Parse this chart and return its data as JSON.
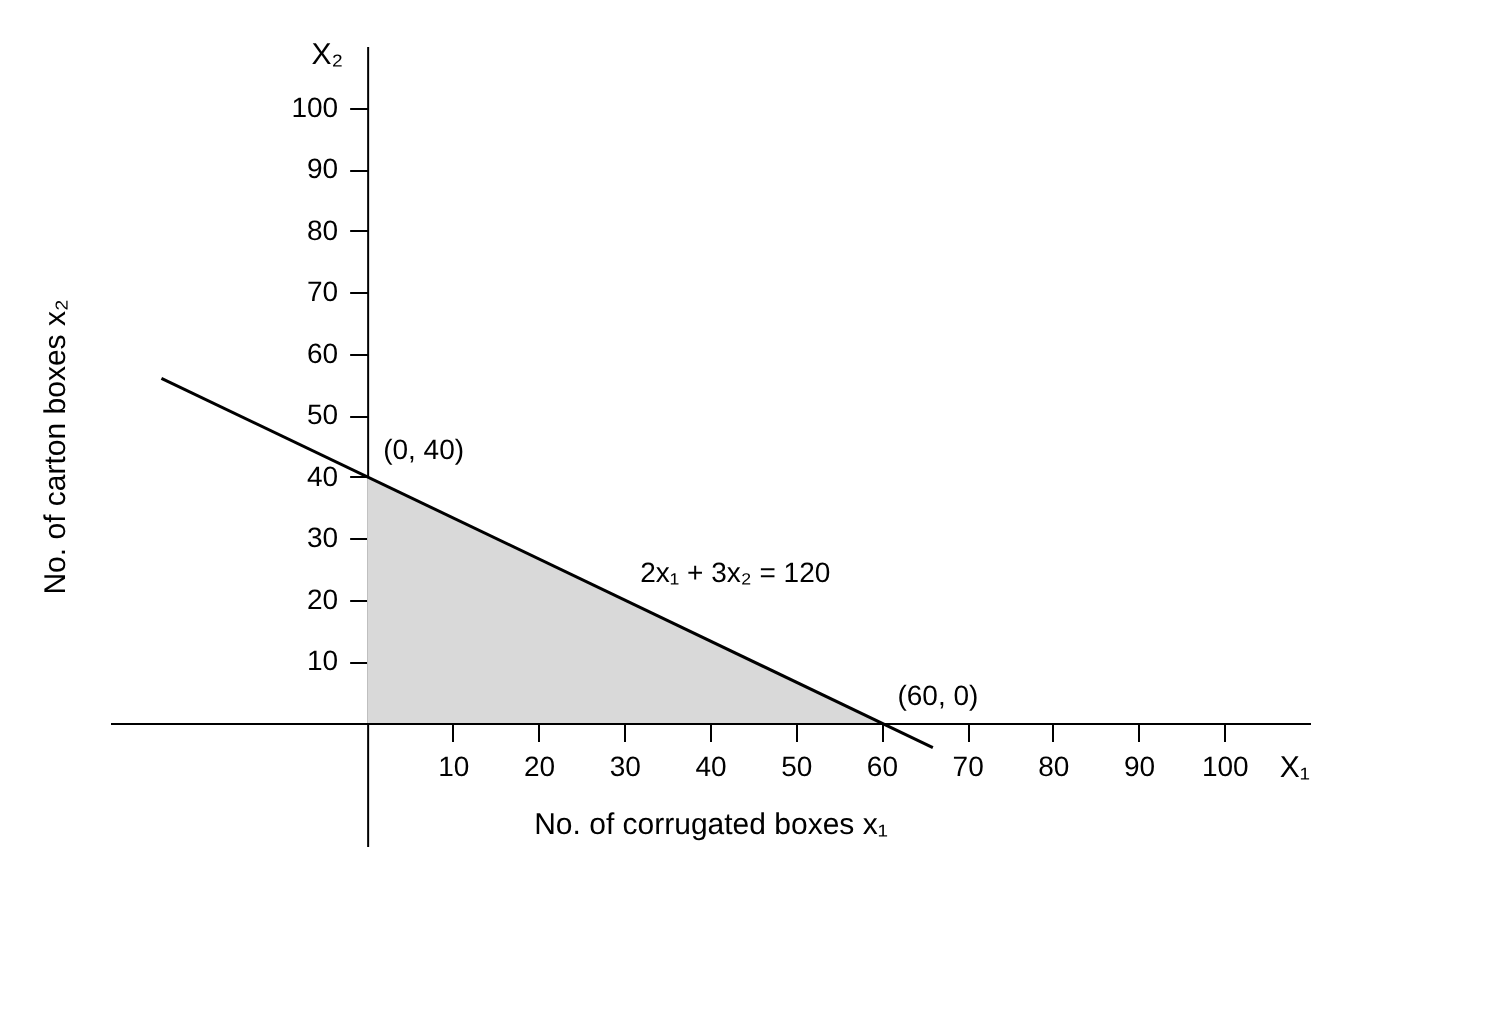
{
  "chart_data": {
    "type": "area",
    "xlabel": "No. of corrugated boxes x₁",
    "ylabel": "No. of carton boxes x₂",
    "xlim": [
      -30,
      110
    ],
    "ylim": [
      -20,
      110
    ],
    "xticks": [
      10,
      20,
      30,
      40,
      50,
      60,
      70,
      80,
      90,
      100
    ],
    "yticks": [
      10,
      20,
      30,
      40,
      50,
      60,
      70,
      80,
      90,
      100
    ],
    "grid": false,
    "series": [
      {
        "type": "area",
        "color": "#d9d9d9",
        "x": [
          0,
          60
        ],
        "values": [
          40,
          0
        ]
      },
      {
        "type": "line",
        "color": "#000000",
        "x": [
          -24,
          66
        ],
        "values": [
          56,
          -4
        ]
      }
    ],
    "annotations": [
      {
        "text": "(0, 40)",
        "x": 0,
        "y": 40
      },
      {
        "text": "2x₁ + 3x₂ = 120",
        "x": 30,
        "y": 20
      },
      {
        "text": "(60, 0)",
        "x": 60,
        "y": 0
      },
      "X₁",
      "X₂"
    ]
  }
}
